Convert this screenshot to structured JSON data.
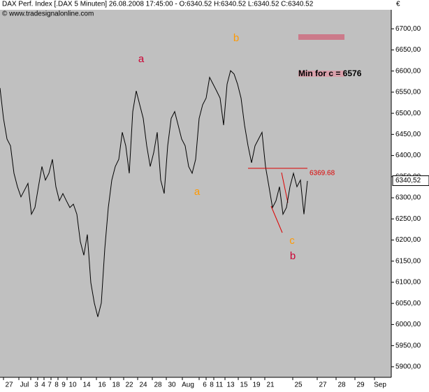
{
  "chart_data": {
    "type": "line",
    "title": "DAX Perf. Index [.DAX  5 Minuten] 26.08.2008 17:45:00 - O:6340.52 H:6340.52 L:6340.52 C:6340.52",
    "subtitle": "© www.tradesignalonline.com",
    "currency": "€",
    "xticks": [
      "27",
      "Jul",
      "3",
      "4",
      "7",
      "8",
      "9",
      "10",
      "14",
      "16",
      "18",
      "22",
      "24",
      "28",
      "30",
      "Aug",
      "6",
      "8",
      "11",
      "13",
      "15",
      "19",
      "21",
      "25",
      "27",
      "28",
      "29",
      "Sep"
    ],
    "series": [
      {
        "name": "DAX",
        "color": "#000000",
        "values": [
          6560,
          6488,
          6439,
          6423,
          6358,
          6326,
          6302,
          6318,
          6334,
          6261,
          6277,
          6326,
          6374,
          6342,
          6358,
          6391,
          6326,
          6293,
          6310,
          6293,
          6277,
          6285,
          6261,
          6196,
          6164,
          6213,
          6099,
          6051,
          6018,
          6051,
          6180,
          6277,
          6342,
          6374,
          6391,
          6455,
          6423,
          6358,
          6504,
          6553,
          6520,
          6488,
          6423,
          6374,
          6407,
          6455,
          6342,
          6310,
          6423,
          6488,
          6504,
          6472,
          6439,
          6423,
          6374,
          6358,
          6391,
          6488,
          6520,
          6536,
          6585,
          6569,
          6553,
          6536,
          6472,
          6569,
          6601,
          6593,
          6569,
          6536,
          6472,
          6423,
          6383,
          6423,
          6439,
          6455,
          6374,
          6326,
          6277,
          6293,
          6326,
          6261,
          6277,
          6326,
          6358,
          6326,
          6342,
          6261,
          6340
        ]
      }
    ],
    "ylim": [
      5875,
      6745
    ],
    "yticks": [
      {
        "value": 5900,
        "label": "5900,00"
      },
      {
        "value": 5950,
        "label": "5950,00"
      },
      {
        "value": 6000,
        "label": "6000,00"
      },
      {
        "value": 6050,
        "label": "6050,00"
      },
      {
        "value": 6100,
        "label": "6100,00"
      },
      {
        "value": 6150,
        "label": "6150,00"
      },
      {
        "value": 6200,
        "label": "6200,00"
      },
      {
        "value": 6250,
        "label": "6250,00"
      },
      {
        "value": 6300,
        "label": "6300,00"
      },
      {
        "value": 6350,
        "label": "6350,00"
      },
      {
        "value": 6400,
        "label": "6400,00"
      },
      {
        "value": 6450,
        "label": "6450,00"
      },
      {
        "value": 6500,
        "label": "6500,00"
      },
      {
        "value": 6550,
        "label": "6550,00"
      },
      {
        "value": 6600,
        "label": "6600,00"
      },
      {
        "value": 6650,
        "label": "6650,00"
      },
      {
        "value": 6700,
        "label": "6700,00"
      }
    ],
    "current_price": {
      "value": 6340.52,
      "label": "6340,52"
    },
    "level": {
      "value": 6369.68,
      "label": "6369.68"
    },
    "note": "Min for c = 6576",
    "annotations": [
      {
        "text": "a",
        "color": "#cc0033"
      },
      {
        "text": "b",
        "color": "#ff9900"
      },
      {
        "text": "a",
        "color": "#ff9900"
      },
      {
        "text": "c",
        "color": "#ff9900"
      },
      {
        "text": "b",
        "color": "#cc0033"
      }
    ]
  }
}
